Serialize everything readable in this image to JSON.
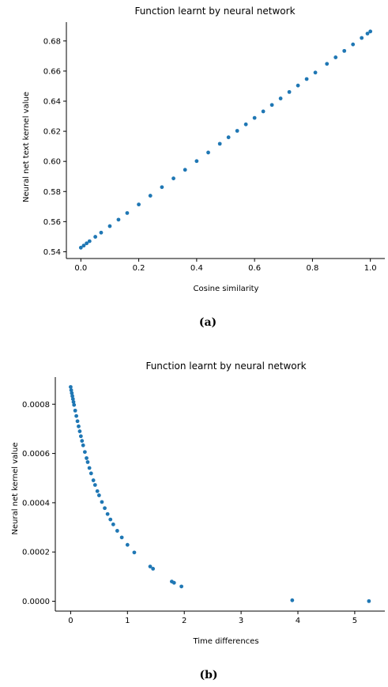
{
  "chart_data": [
    {
      "type": "scatter",
      "title": "Function learnt by neural network",
      "xlabel": "Cosine similarity",
      "ylabel": "Neural net text kernel value",
      "xlim": [
        -0.05,
        1.05
      ],
      "ylim": [
        0.5355,
        0.6925
      ],
      "xticks": [
        "0.0",
        "0.2",
        "0.4",
        "0.6",
        "0.8",
        "1.0"
      ],
      "yticks": [
        "0.54",
        "0.56",
        "0.58",
        "0.60",
        "0.62",
        "0.64",
        "0.66",
        "0.68"
      ],
      "color": "#1f77b4",
      "grid": false,
      "caption": "(a)",
      "series": [
        {
          "x": [
            0.0,
            0.01,
            0.02,
            0.03,
            0.05,
            0.07,
            0.1,
            0.13,
            0.16,
            0.2,
            0.24,
            0.28,
            0.32,
            0.36,
            0.4,
            0.44,
            0.48,
            0.51,
            0.54,
            0.57,
            0.6,
            0.63,
            0.66,
            0.69,
            0.72,
            0.75,
            0.78,
            0.81,
            0.85,
            0.88,
            0.91,
            0.94,
            0.97,
            0.99,
            1.0
          ],
          "y": [
            0.5427,
            0.5441,
            0.5456,
            0.547,
            0.5499,
            0.5527,
            0.557,
            0.5613,
            0.5657,
            0.5714,
            0.5772,
            0.5829,
            0.5887,
            0.5944,
            0.6002,
            0.6059,
            0.6117,
            0.616,
            0.6203,
            0.6246,
            0.6289,
            0.6332,
            0.6375,
            0.6418,
            0.6461,
            0.6504,
            0.6547,
            0.659,
            0.6648,
            0.6691,
            0.6734,
            0.6777,
            0.682,
            0.6849,
            0.6863
          ]
        }
      ]
    },
    {
      "type": "scatter",
      "title": "Function learnt by neural network",
      "xlabel": "Time differences",
      "ylabel": "Neural net kernel value",
      "xlim": [
        -0.27,
        5.53
      ],
      "ylim": [
        -4e-05,
        0.00091
      ],
      "xticks": [
        "0",
        "1",
        "2",
        "3",
        "4",
        "5"
      ],
      "yticks": [
        "0.0000",
        "0.0002",
        "0.0004",
        "0.0006",
        "0.0008"
      ],
      "color": "#1f77b4",
      "grid": false,
      "caption": "(b)",
      "series": [
        {
          "x": [
            0.0,
            0.01,
            0.02,
            0.03,
            0.04,
            0.05,
            0.06,
            0.08,
            0.1,
            0.12,
            0.14,
            0.16,
            0.18,
            0.2,
            0.22,
            0.25,
            0.28,
            0.3,
            0.33,
            0.36,
            0.4,
            0.43,
            0.47,
            0.5,
            0.55,
            0.6,
            0.65,
            0.7,
            0.75,
            0.82,
            0.9,
            1.0,
            1.12,
            1.4,
            1.45,
            1.78,
            1.82,
            1.95,
            3.9,
            5.25
          ],
          "y": [
            0.00087,
            0.000857,
            0.000845,
            0.000833,
            0.000821,
            0.000809,
            0.000797,
            0.000774,
            0.000752,
            0.000731,
            0.00071,
            0.00069,
            0.00067,
            0.000651,
            0.000633,
            0.000606,
            0.000581,
            0.000565,
            0.000541,
            0.000519,
            0.000491,
            0.000472,
            0.000447,
            0.00043,
            0.000403,
            0.000378,
            0.000354,
            0.000332,
            0.000312,
            0.000286,
            0.000259,
            0.000229,
            0.000198,
            0.000141,
            0.000132,
            8e-05,
            7.5e-05,
            6e-05,
            4e-06,
            5e-07
          ]
        }
      ]
    }
  ]
}
